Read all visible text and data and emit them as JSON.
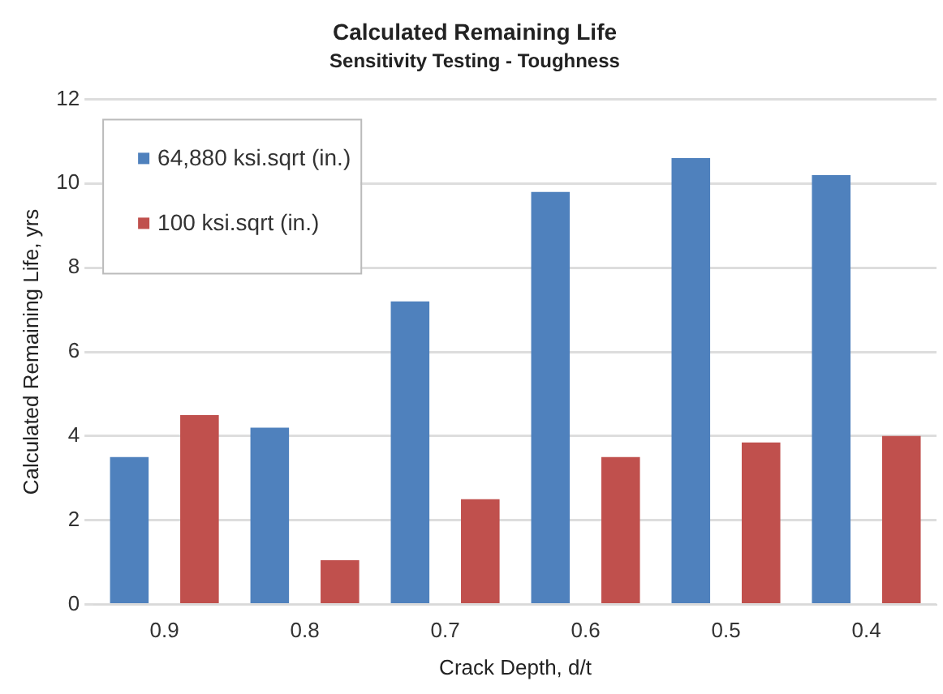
{
  "chart_data": {
    "type": "bar",
    "title": "Calculated Remaining Life",
    "subtitle": "Sensitivity Testing - Toughness",
    "xlabel": "Crack Depth, d/t",
    "ylabel": "Calculated Remaining Life, yrs",
    "categories": [
      "0.9",
      "0.8",
      "0.7",
      "0.6",
      "0.5",
      "0.4"
    ],
    "series": [
      {
        "name": "64,880 ksi.sqrt (in.)",
        "color": "#4f81bd",
        "values": [
          3.5,
          4.2,
          7.2,
          9.8,
          10.6,
          10.2
        ]
      },
      {
        "name": "100 ksi.sqrt (in.)",
        "color": "#c0504d",
        "values": [
          4.5,
          1.05,
          2.5,
          3.5,
          3.85,
          4.0
        ]
      }
    ],
    "ylim": [
      0,
      12
    ],
    "yticks": [
      0,
      2,
      4,
      6,
      8,
      10,
      12
    ],
    "grid": "y",
    "legend": "top left"
  }
}
